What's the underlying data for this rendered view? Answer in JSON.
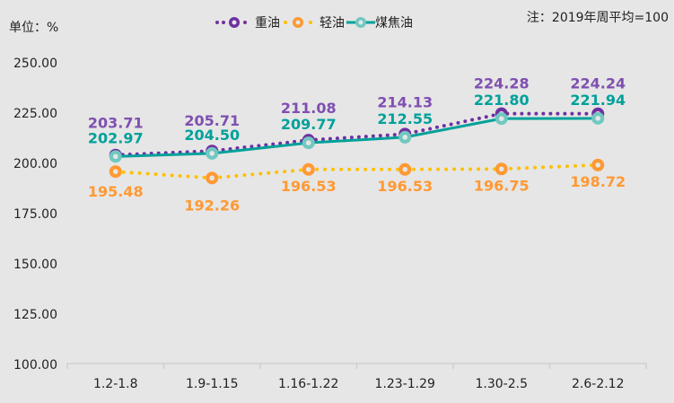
{
  "header": {
    "unit_label": "单位：%",
    "note": "注：2019年周平均=100"
  },
  "legend": [
    {
      "name": "重油",
      "color": "#7030a0",
      "style": "dotted"
    },
    {
      "name": "轻油",
      "color": "#ffc000",
      "marker_color": "#ff9933",
      "style": "dotted"
    },
    {
      "name": "煤焦油",
      "color": "#00a19a",
      "marker_color": "#70c8c0",
      "style": "solid"
    }
  ],
  "chart_data": {
    "type": "line",
    "title": "",
    "xlabel": "",
    "ylabel": "单位：%",
    "categories": [
      "1.2-1.8",
      "1.9-1.15",
      "1.16-1.22",
      "1.23-1.29",
      "1.30-2.5",
      "2.6-2.12"
    ],
    "series": [
      {
        "name": "重油",
        "values": [
          203.71,
          205.71,
          211.08,
          214.13,
          224.28,
          224.24
        ],
        "color": "#7030a0",
        "label_color": "#7f4fb0"
      },
      {
        "name": "轻油",
        "values": [
          195.48,
          192.26,
          196.53,
          196.53,
          196.75,
          198.72
        ],
        "color": "#ffc000",
        "label_color": "#ff9933"
      },
      {
        "name": "煤焦油",
        "values": [
          202.97,
          204.5,
          209.77,
          212.55,
          221.8,
          221.94
        ],
        "color": "#00a19a",
        "label_color": "#00a19a"
      }
    ],
    "yticks": [
      "100.00",
      "125.00",
      "150.00",
      "175.00",
      "200.00",
      "225.00",
      "250.00"
    ],
    "ylim": [
      100,
      250
    ],
    "grid": false,
    "legend_position": "top",
    "annotation": "注：2019年周平均=100"
  }
}
